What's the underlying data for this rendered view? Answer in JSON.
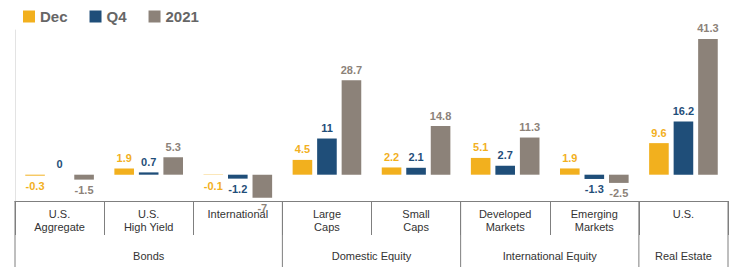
{
  "chart_data": {
    "type": "bar",
    "categories": [
      "U.S.\nAggregate",
      "U.S.\nHigh Yield",
      "International",
      "Large\nCaps",
      "Small\nCaps",
      "Developed\nMarkets",
      "Emerging\nMarkets",
      "U.S."
    ],
    "category_groups": [
      "Bonds",
      "Bonds",
      "Bonds",
      "Domestic Equity",
      "Domestic Equity",
      "International Equity",
      "International Equity",
      "Real Estate"
    ],
    "series": [
      {
        "name": "Dec",
        "color": "#f2b01e",
        "values": [
          -0.3,
          1.9,
          -0.1,
          4.5,
          2.2,
          5.1,
          1.9,
          9.6
        ]
      },
      {
        "name": "Q4",
        "color": "#1f4e79",
        "values": [
          0.0,
          0.7,
          -1.2,
          11.0,
          2.1,
          2.7,
          -1.3,
          16.2
        ]
      },
      {
        "name": "2021",
        "color": "#8c8279",
        "values": [
          -1.5,
          5.3,
          -7.0,
          28.7,
          14.8,
          11.3,
          -2.5,
          41.3
        ]
      }
    ],
    "ylim": [
      -8,
      44
    ],
    "legend": "top-left",
    "data_labels": true,
    "tick_labels": "x",
    "grid": false
  }
}
